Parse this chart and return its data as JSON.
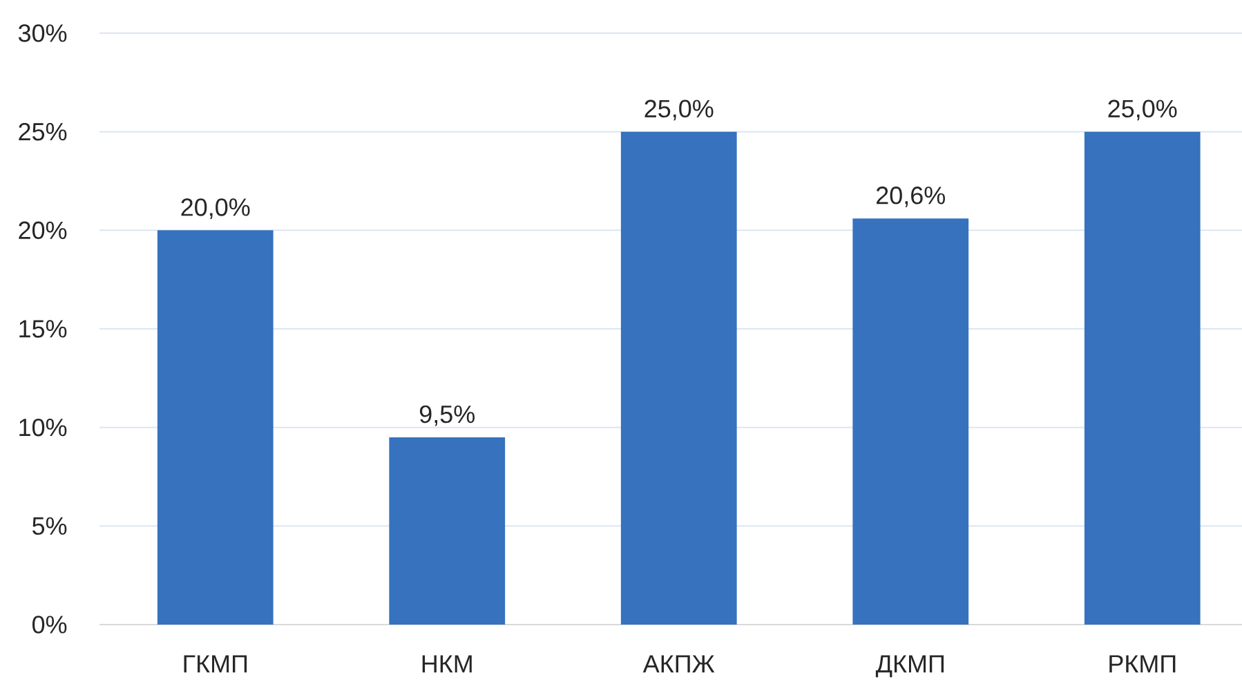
{
  "chart_data": {
    "type": "bar",
    "categories": [
      "ГКМП",
      "НКМ",
      "АКПЖ",
      "ДКМП",
      "РКМП"
    ],
    "values": [
      20.0,
      9.5,
      25.0,
      20.6,
      25.0
    ],
    "value_labels": [
      "20,0%",
      "9,5%",
      "25,0%",
      "20,6%",
      "25,0%"
    ],
    "color": "#3672bd",
    "ylim": [
      0,
      30
    ],
    "yticks": [
      {
        "value": 0,
        "label": "0%"
      },
      {
        "value": 5,
        "label": "5%"
      },
      {
        "value": 10,
        "label": "10%"
      },
      {
        "value": 15,
        "label": "15%"
      },
      {
        "value": 20,
        "label": "20%"
      },
      {
        "value": 25,
        "label": "25%"
      },
      {
        "value": 30,
        "label": "30%"
      }
    ],
    "grid": "y"
  }
}
